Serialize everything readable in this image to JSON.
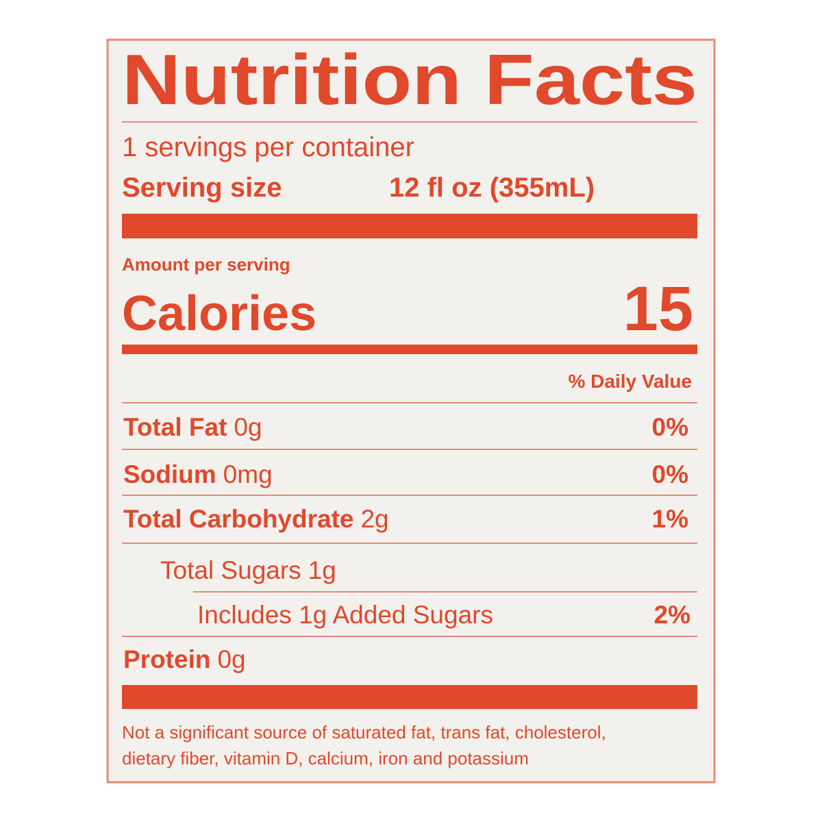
{
  "title": "Nutrition Facts",
  "servings": "1 servings per container",
  "serving_size": {
    "label": "Serving size",
    "value": "12 fl oz (355mL)"
  },
  "amount_per_serving": "Amount per serving",
  "calories": {
    "label": "Calories",
    "value": "15"
  },
  "daily_value_header": "% Daily Value",
  "nutrients": [
    {
      "name": "Total Fat",
      "amount": "0g",
      "dv": "0%"
    },
    {
      "name": "Sodium",
      "amount": "0mg",
      "dv": "0%"
    },
    {
      "name": "Total Carbohydrate",
      "amount": "2g",
      "dv": "1%"
    },
    {
      "name": "Total Sugars",
      "amount": "1g"
    },
    {
      "name": "Includes 1g Added Sugars",
      "dv": "2%"
    },
    {
      "name": "Protein",
      "amount": "0g"
    }
  ],
  "footnote": [
    "Not a significant source of saturated fat, trans fat, cholesterol,",
    "dietary fiber, vitamin D, calcium, iron and potassium"
  ]
}
